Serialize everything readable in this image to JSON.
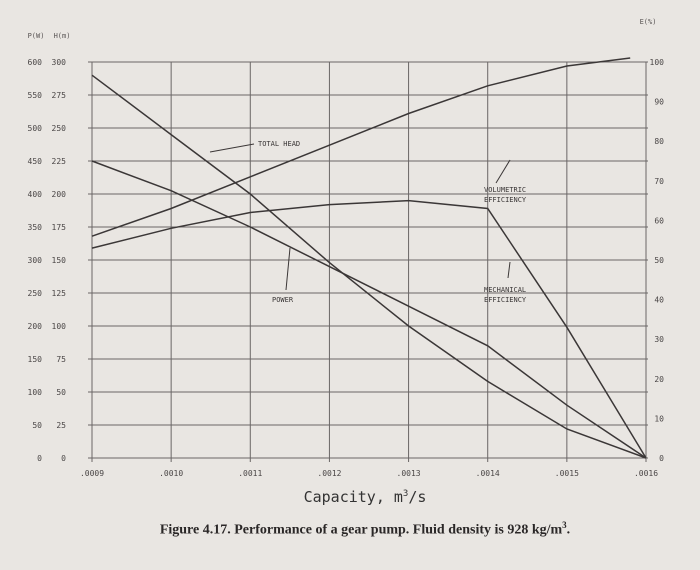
{
  "chart_data": {
    "type": "line",
    "left_axis_units": [
      "P(W)",
      "H(m)"
    ],
    "right_axis_unit": "E(%)",
    "left_ticks_power": [
      "600",
      "550",
      "500",
      "450",
      "400",
      "350",
      "300",
      "250",
      "200",
      "150",
      "100",
      "50",
      "0"
    ],
    "left_ticks_head": [
      "300",
      "275",
      "250",
      "225",
      "200",
      "175",
      "150",
      "125",
      "100",
      "75",
      "50",
      "25",
      "0"
    ],
    "right_ticks": [
      "100",
      "90",
      "80",
      "70",
      "60",
      "50",
      "40",
      "30",
      "20",
      "10",
      "0"
    ],
    "x_ticks": [
      ".0009",
      ".0010",
      ".0011",
      ".0012",
      ".0013",
      ".0014",
      ".0015",
      ".0016"
    ],
    "xlabel_prefix": "Capacity,  m",
    "xlabel_sup": "3",
    "xlabel_suffix": "/s",
    "xlim": [
      0.0009,
      0.0016
    ],
    "head_ylim": [
      0,
      300
    ],
    "power_ylim": [
      0,
      600
    ],
    "eff_ylim": [
      0,
      100
    ],
    "series": [
      {
        "name": "TOTAL HEAD",
        "axis": "head",
        "points": [
          [
            0.0009,
            290
          ],
          [
            0.001,
            245
          ],
          [
            0.0011,
            200
          ],
          [
            0.0012,
            148
          ],
          [
            0.0013,
            100
          ],
          [
            0.0014,
            58
          ],
          [
            0.0015,
            22
          ],
          [
            0.0016,
            0
          ]
        ]
      },
      {
        "name": "POWER",
        "axis": "power",
        "points": [
          [
            0.0009,
            450
          ],
          [
            0.001,
            405
          ],
          [
            0.0011,
            350
          ],
          [
            0.0012,
            290
          ],
          [
            0.0013,
            230
          ],
          [
            0.0014,
            170
          ],
          [
            0.0015,
            80
          ],
          [
            0.0016,
            0
          ]
        ]
      },
      {
        "name": "VOLUMETRIC EFFICIENCY",
        "axis": "eff",
        "points": [
          [
            0.0009,
            56
          ],
          [
            0.001,
            63
          ],
          [
            0.0011,
            71
          ],
          [
            0.0012,
            79
          ],
          [
            0.0013,
            87
          ],
          [
            0.0014,
            94
          ],
          [
            0.0015,
            99
          ],
          [
            0.00158,
            101
          ]
        ]
      },
      {
        "name": "MECHANICAL EFFICIENCY",
        "axis": "eff",
        "points": [
          [
            0.0009,
            53
          ],
          [
            0.001,
            58
          ],
          [
            0.0011,
            62
          ],
          [
            0.0012,
            64
          ],
          [
            0.0013,
            65
          ],
          [
            0.0014,
            63
          ],
          [
            0.0015,
            33
          ],
          [
            0.0016,
            0
          ]
        ]
      }
    ],
    "annotations": {
      "head_label": "TOTAL HEAD",
      "power_label": "POWER",
      "vol_label_1": "VOLUMETRIC",
      "vol_label_2": "EFFICIENCY",
      "mech_label_1": "MECHANICAL",
      "mech_label_2": "EFFICIENCY"
    },
    "grid": true
  },
  "caption": "Figure 4.17.  Performance of a gear pump. Fluid density is 928 kg/m",
  "caption_sup": "3",
  "caption_end": "."
}
